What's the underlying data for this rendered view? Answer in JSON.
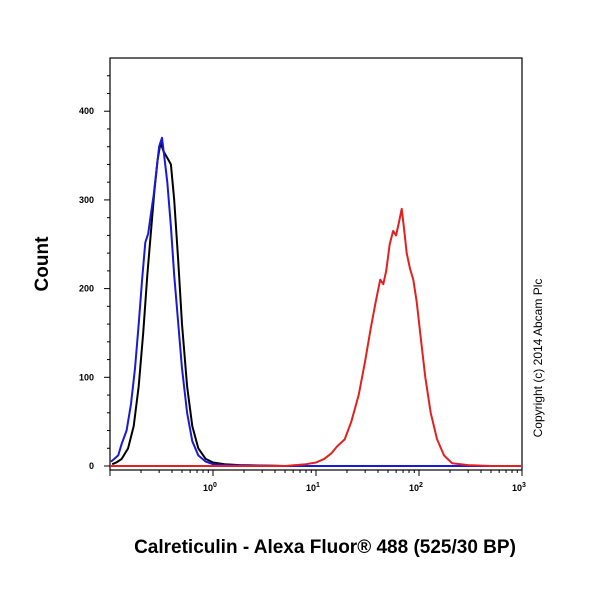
{
  "chart_data": {
    "type": "line",
    "xlabel": "Calreticulin - Alexa Fluor® 488 (525/30 BP)",
    "ylabel": "Count",
    "xscale": "log",
    "xlim": [
      0.1,
      1000
    ],
    "ylim": [
      0,
      460
    ],
    "x_ticks": [
      {
        "value": 1,
        "base": "10",
        "exp": "0"
      },
      {
        "value": 10,
        "base": "10",
        "exp": "1"
      },
      {
        "value": 100,
        "base": "10",
        "exp": "2"
      },
      {
        "value": 1000,
        "base": "10",
        "exp": "3"
      }
    ],
    "y_ticks": [
      {
        "value": 0,
        "label": "0"
      },
      {
        "value": 100,
        "label": "100"
      },
      {
        "value": 200,
        "label": "200"
      },
      {
        "value": 300,
        "label": "300"
      },
      {
        "value": 400,
        "label": "400"
      }
    ],
    "grid": false,
    "annotation": "Copyright (c) 2014 Abcam Plc",
    "series": [
      {
        "color": "#000000",
        "points": [
          [
            0.105,
            2
          ],
          [
            0.115,
            4
          ],
          [
            0.13,
            8
          ],
          [
            0.15,
            20
          ],
          [
            0.17,
            45
          ],
          [
            0.19,
            90
          ],
          [
            0.21,
            150
          ],
          [
            0.23,
            215
          ],
          [
            0.25,
            265
          ],
          [
            0.27,
            310
          ],
          [
            0.29,
            345
          ],
          [
            0.31,
            365
          ],
          [
            0.33,
            355
          ],
          [
            0.35,
            350
          ],
          [
            0.37,
            345
          ],
          [
            0.39,
            340
          ],
          [
            0.42,
            300
          ],
          [
            0.46,
            230
          ],
          [
            0.5,
            160
          ],
          [
            0.56,
            90
          ],
          [
            0.63,
            45
          ],
          [
            0.72,
            20
          ],
          [
            0.85,
            8
          ],
          [
            1.0,
            4
          ],
          [
            1.3,
            2
          ],
          [
            1.8,
            1
          ],
          [
            5,
            0
          ],
          [
            30,
            0
          ],
          [
            200,
            0
          ],
          [
            1000,
            0
          ]
        ]
      },
      {
        "color": "#1a1ad6",
        "points": [
          [
            0.102,
            5
          ],
          [
            0.11,
            8
          ],
          [
            0.12,
            12
          ],
          [
            0.13,
            25
          ],
          [
            0.145,
            40
          ],
          [
            0.16,
            70
          ],
          [
            0.175,
            110
          ],
          [
            0.19,
            160
          ],
          [
            0.205,
            210
          ],
          [
            0.22,
            252
          ],
          [
            0.235,
            262
          ],
          [
            0.25,
            285
          ],
          [
            0.265,
            305
          ],
          [
            0.28,
            330
          ],
          [
            0.3,
            360
          ],
          [
            0.32,
            370
          ],
          [
            0.34,
            345
          ],
          [
            0.36,
            320
          ],
          [
            0.39,
            270
          ],
          [
            0.42,
            215
          ],
          [
            0.46,
            160
          ],
          [
            0.5,
            110
          ],
          [
            0.56,
            60
          ],
          [
            0.63,
            28
          ],
          [
            0.72,
            12
          ],
          [
            0.85,
            5
          ],
          [
            1.0,
            2
          ],
          [
            1.4,
            1
          ],
          [
            5,
            0
          ],
          [
            30,
            0
          ],
          [
            200,
            0
          ],
          [
            1000,
            0
          ]
        ]
      },
      {
        "color": "#e32020",
        "points": [
          [
            0.1,
            0
          ],
          [
            5,
            0
          ],
          [
            8,
            2
          ],
          [
            10,
            4
          ],
          [
            12,
            8
          ],
          [
            14,
            14
          ],
          [
            16,
            22
          ],
          [
            19,
            30
          ],
          [
            22,
            50
          ],
          [
            26,
            80
          ],
          [
            30,
            118
          ],
          [
            34,
            155
          ],
          [
            38,
            185
          ],
          [
            42,
            210
          ],
          [
            45,
            205
          ],
          [
            48,
            220
          ],
          [
            52,
            250
          ],
          [
            56,
            265
          ],
          [
            60,
            260
          ],
          [
            64,
            275
          ],
          [
            68,
            290
          ],
          [
            72,
            265
          ],
          [
            76,
            240
          ],
          [
            82,
            222
          ],
          [
            88,
            210
          ],
          [
            95,
            185
          ],
          [
            105,
            140
          ],
          [
            115,
            100
          ],
          [
            130,
            60
          ],
          [
            150,
            30
          ],
          [
            175,
            12
          ],
          [
            210,
            3
          ],
          [
            300,
            1
          ],
          [
            500,
            0
          ],
          [
            1000,
            0
          ]
        ]
      }
    ]
  }
}
